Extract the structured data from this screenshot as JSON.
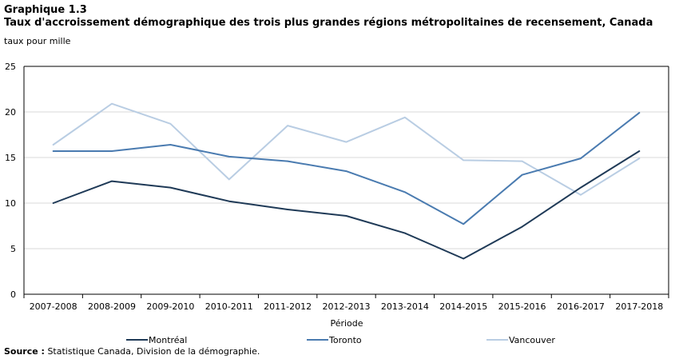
{
  "header": {
    "label": "Graphique  1.3",
    "title": "Taux d'accroissement démographique  des trois plus grandes régions métropolitaines  de recensement, Canada"
  },
  "source": {
    "label": "Source :",
    "text": " Statistique Canada, Division de la démographie."
  },
  "chart_data": {
    "type": "line",
    "ylabel": "taux pour mille",
    "xlabel": "Période",
    "ylim": [
      0,
      25
    ],
    "yticks": [
      0,
      5,
      10,
      15,
      20,
      25
    ],
    "grid": true,
    "legend_position": "bottom",
    "categories": [
      "2007-2008",
      "2008-2009",
      "2009-2010",
      "2010-2011",
      "2011-2012",
      "2012-2013",
      "2013-2014",
      "2014-2015",
      "2015-2016",
      "2016-2017",
      "2017-2018"
    ],
    "series": [
      {
        "name": "Montréal",
        "color": "#1f3a57",
        "values": [
          10.0,
          12.4,
          11.7,
          10.2,
          9.3,
          8.6,
          6.7,
          3.9,
          7.4,
          11.7,
          15.7
        ]
      },
      {
        "name": "Toronto",
        "color": "#4a7bb0",
        "values": [
          15.7,
          15.7,
          16.4,
          15.1,
          14.6,
          13.5,
          11.2,
          7.7,
          13.1,
          14.9,
          19.9
        ]
      },
      {
        "name": "Vancouver",
        "color": "#b9cde3",
        "values": [
          16.4,
          20.9,
          18.7,
          12.6,
          18.5,
          16.7,
          19.4,
          14.7,
          14.6,
          10.9,
          14.9
        ]
      }
    ]
  }
}
